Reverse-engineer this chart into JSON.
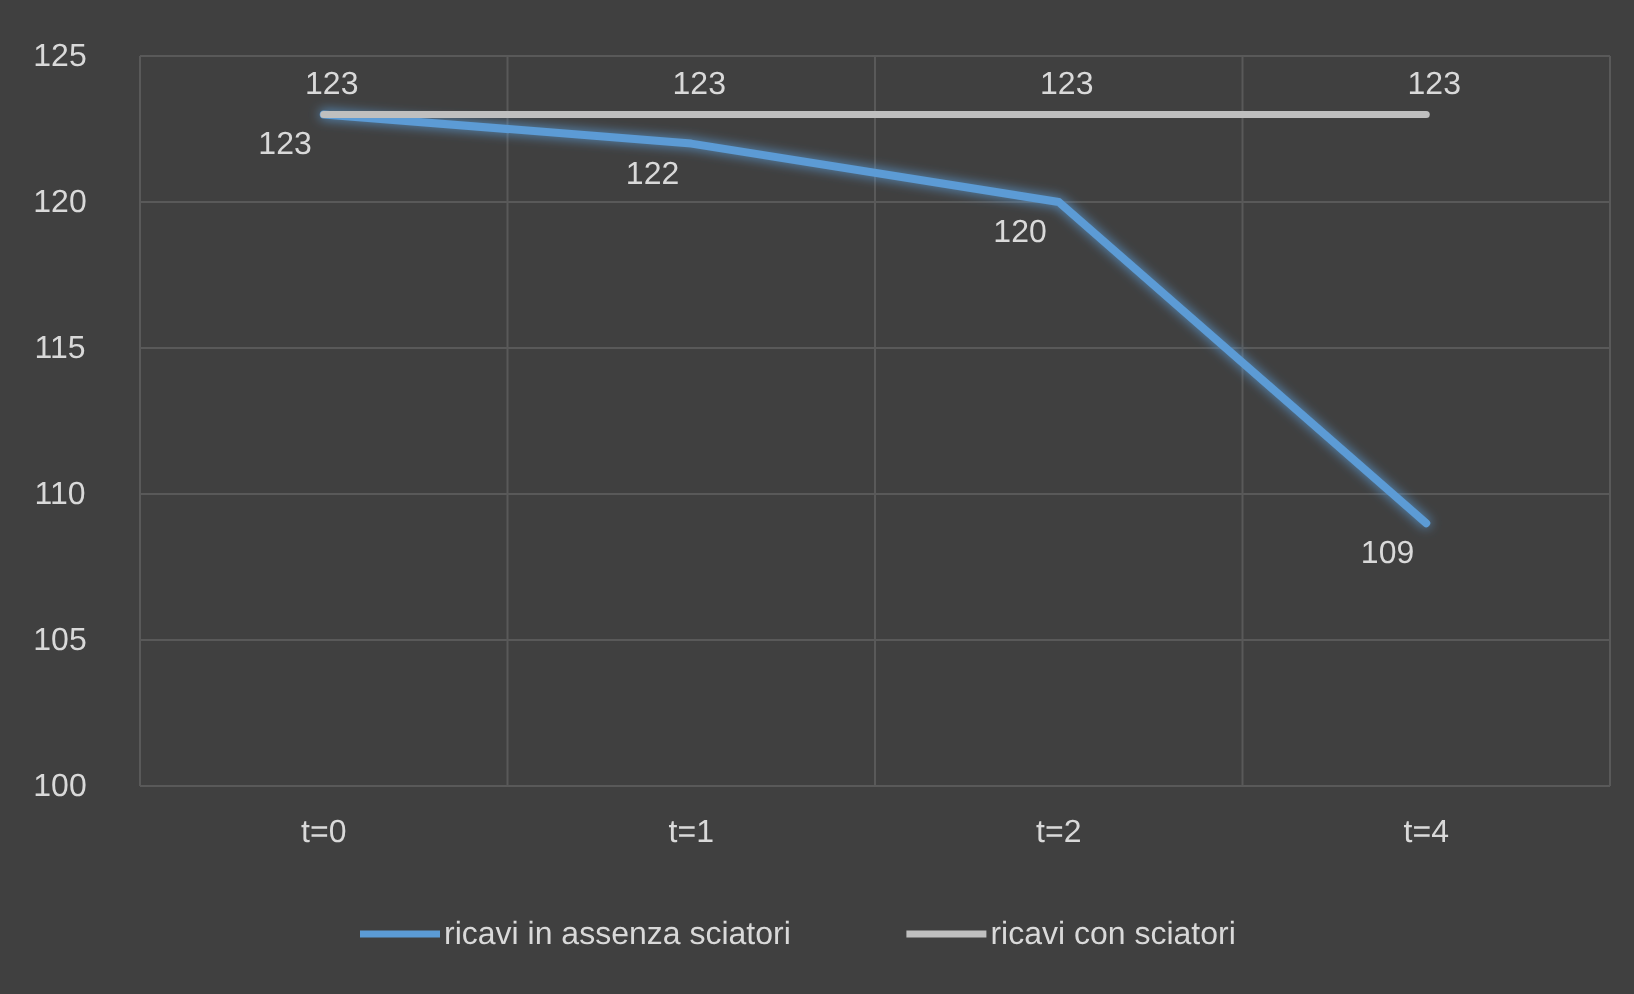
{
  "chart_data": {
    "type": "line",
    "categories": [
      "t=0",
      "t=1",
      "t=2",
      "t=4"
    ],
    "series": [
      {
        "name": "ricavi in assenza sciatori",
        "color": "#5b9bd5",
        "values": [
          123,
          122,
          120,
          109
        ]
      },
      {
        "name": "ricavi con sciatori",
        "color": "#bfbfbf",
        "values": [
          123,
          123,
          123,
          123
        ]
      }
    ],
    "ylim": [
      100,
      125
    ],
    "yticks": [
      100,
      105,
      110,
      115,
      120,
      125
    ],
    "grid": true,
    "data_labels": true,
    "legend": "bottom",
    "marker": "none",
    "line_style": "solid"
  }
}
